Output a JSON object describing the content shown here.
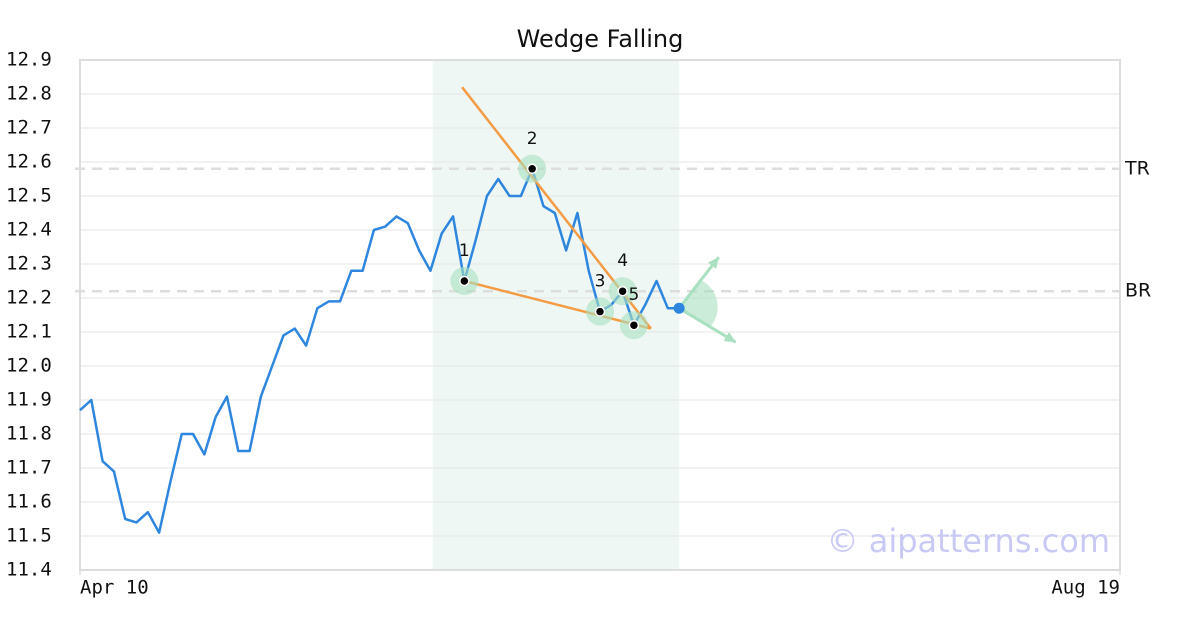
{
  "chart_data": {
    "type": "line",
    "title": "Wedge Falling",
    "x": [
      0,
      1,
      2,
      3,
      4,
      5,
      6,
      7,
      8,
      9,
      10,
      11,
      12,
      13,
      14,
      15,
      16,
      17,
      18,
      19,
      20,
      21,
      22,
      23,
      24,
      25,
      26,
      27,
      28,
      29,
      30,
      31,
      32,
      33,
      34,
      35,
      36,
      37,
      38,
      39,
      40,
      41,
      42,
      43,
      44,
      45,
      46,
      47,
      48,
      49,
      50,
      51,
      52,
      53
    ],
    "values": [
      11.87,
      11.9,
      11.72,
      11.69,
      11.55,
      11.54,
      11.57,
      11.51,
      11.66,
      11.8,
      11.8,
      11.74,
      11.85,
      11.91,
      11.75,
      11.75,
      11.91,
      12.0,
      12.09,
      12.11,
      12.06,
      12.17,
      12.19,
      12.19,
      12.28,
      12.28,
      12.4,
      12.41,
      12.44,
      12.42,
      12.34,
      12.28,
      12.39,
      12.44,
      12.25,
      12.37,
      12.5,
      12.55,
      12.5,
      12.5,
      12.58,
      12.47,
      12.45,
      12.34,
      12.45,
      12.28,
      12.16,
      12.18,
      12.22,
      12.12,
      12.18,
      12.25,
      12.17,
      12.17
    ],
    "color": "#2e86de",
    "xlim": [
      0,
      92
    ],
    "xticks": [
      {
        "value": 0,
        "label": "Apr 10"
      },
      {
        "value": 92,
        "label": "Aug 19"
      }
    ],
    "ylim": [
      11.4,
      12.9
    ],
    "yticks": [
      11.4,
      11.5,
      11.6,
      11.7,
      11.8,
      11.9,
      {
        "value": 12,
        "label": "12.0"
      },
      12.1,
      12.2,
      12.3,
      12.4,
      12.5,
      12.6,
      12.7,
      12.8,
      12.9
    ],
    "grid": true,
    "shaded_range": [
      31.2,
      53
    ],
    "levels": [
      {
        "label": "TR",
        "value": 12.58
      },
      {
        "label": "BR",
        "value": 12.22
      }
    ],
    "pattern_points": {
      "labels": [
        "1",
        "2",
        "3",
        "4",
        "5"
      ],
      "x": [
        34,
        40,
        46,
        48,
        49
      ],
      "values": [
        12.25,
        12.58,
        12.16,
        12.22,
        12.12
      ]
    },
    "trend_lines": [
      {
        "x": [
          33.8,
          50.5
        ],
        "values": [
          12.82,
          12.11
        ]
      },
      {
        "x": [
          34,
          50.5
        ],
        "values": [
          12.25,
          12.11
        ]
      }
    ],
    "trend_color": "#f39c45",
    "projection": {
      "x": [
        56.5,
        58
      ],
      "values": [
        12.32,
        12.07
      ]
    },
    "watermark": "© aipatterns.com"
  }
}
